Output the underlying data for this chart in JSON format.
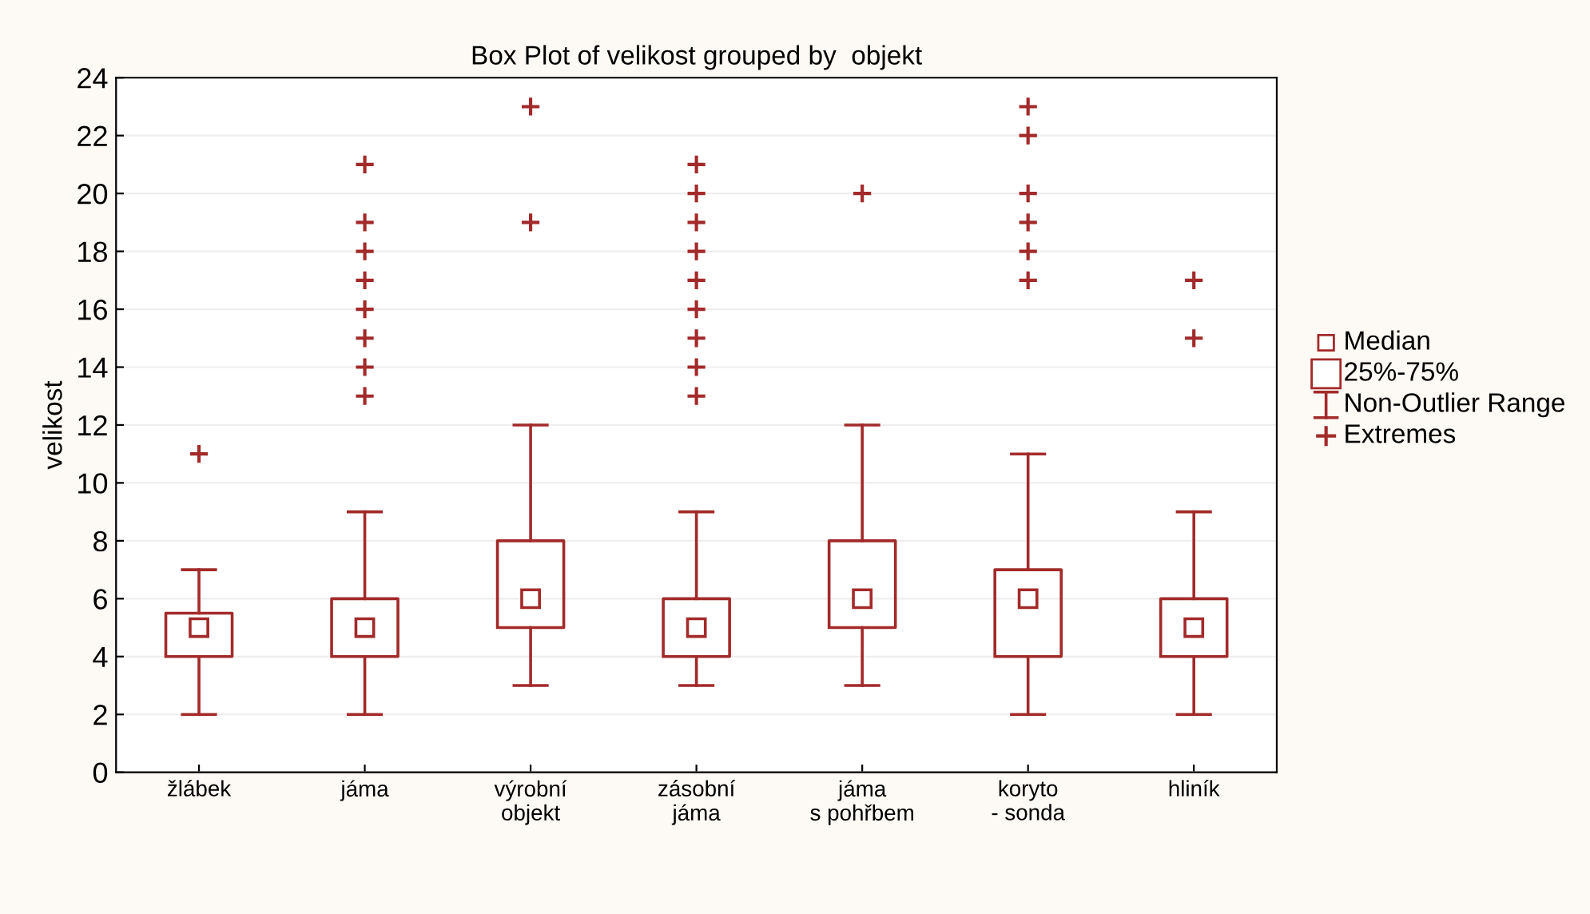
{
  "chart_data": {
    "type": "box",
    "title": "Box Plot of velikost grouped by  objekt",
    "ylabel": "velikost",
    "categories": [
      "žlábek",
      "jáma",
      "výrobní\nobjekt",
      "zásobní\njáma",
      "jáma\ns pohřbem",
      "koryto\n- sonda",
      "hliník"
    ],
    "series": [
      {
        "color": "#a32a2a",
        "boxes": [
          {
            "low": 2,
            "q1": 4,
            "median": 5,
            "q3": 5.5,
            "high": 7,
            "outliers": [
              11
            ]
          },
          {
            "low": 2,
            "q1": 4,
            "median": 5,
            "q3": 6,
            "high": 9,
            "outliers": [
              13,
              14,
              15,
              16,
              17,
              18,
              19,
              21
            ]
          },
          {
            "low": 3,
            "q1": 5,
            "median": 6,
            "q3": 8,
            "high": 12,
            "outliers": [
              19,
              23
            ]
          },
          {
            "low": 3,
            "q1": 4,
            "median": 5,
            "q3": 6,
            "high": 9,
            "outliers": [
              13,
              14,
              15,
              16,
              17,
              18,
              19,
              20,
              21
            ]
          },
          {
            "low": 3,
            "q1": 5,
            "median": 6,
            "q3": 8,
            "high": 12,
            "outliers": [
              20
            ]
          },
          {
            "low": 2,
            "q1": 4,
            "median": 6,
            "q3": 7,
            "high": 11,
            "outliers": [
              17,
              18,
              19,
              20,
              22,
              23
            ]
          },
          {
            "low": 2,
            "q1": 4,
            "median": 5,
            "q3": 6,
            "high": 9,
            "outliers": [
              15,
              17
            ]
          }
        ]
      }
    ],
    "ylim": [
      0,
      24
    ],
    "yticks": [
      0,
      2,
      4,
      6,
      8,
      10,
      12,
      14,
      16,
      18,
      20,
      22,
      24
    ],
    "grid": "y",
    "annotations": [
      "Median",
      "25%-75%",
      "Non-Outlier Range",
      "Extremes"
    ]
  }
}
